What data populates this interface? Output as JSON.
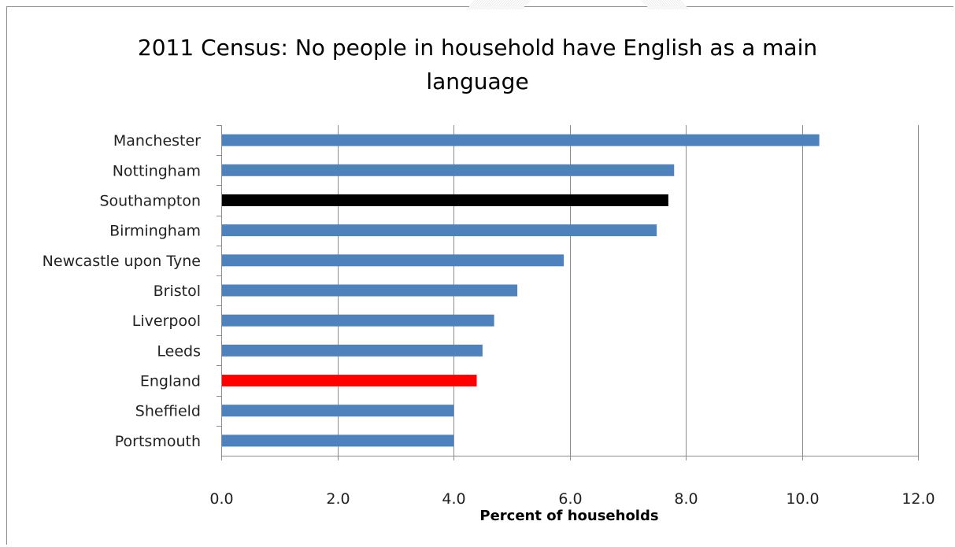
{
  "chart_data": {
    "type": "bar",
    "orientation": "horizontal",
    "title_lines": [
      "2011 Census: No people in household have English as a main",
      "language"
    ],
    "xlabel": "Percent of households",
    "ylabel": "",
    "categories": [
      "Manchester",
      "Nottingham",
      "Southampton",
      "Birmingham",
      "Newcastle upon Tyne",
      "Bristol",
      "Liverpool",
      "Leeds",
      "England",
      "Sheffield",
      "Portsmouth"
    ],
    "values": [
      10.3,
      7.8,
      7.7,
      7.5,
      5.9,
      5.1,
      4.7,
      4.5,
      4.4,
      4.0,
      4.0
    ],
    "bar_colors": [
      "#4f81bd",
      "#4f81bd",
      "#000000",
      "#4f81bd",
      "#4f81bd",
      "#4f81bd",
      "#4f81bd",
      "#4f81bd",
      "#ff0000",
      "#4f81bd",
      "#4f81bd"
    ],
    "xlim": [
      0,
      12
    ],
    "xticks": [
      "0.0",
      "2.0",
      "4.0",
      "6.0",
      "8.0",
      "10.0",
      "12.0"
    ],
    "grid": "vertical",
    "legend": "none"
  }
}
